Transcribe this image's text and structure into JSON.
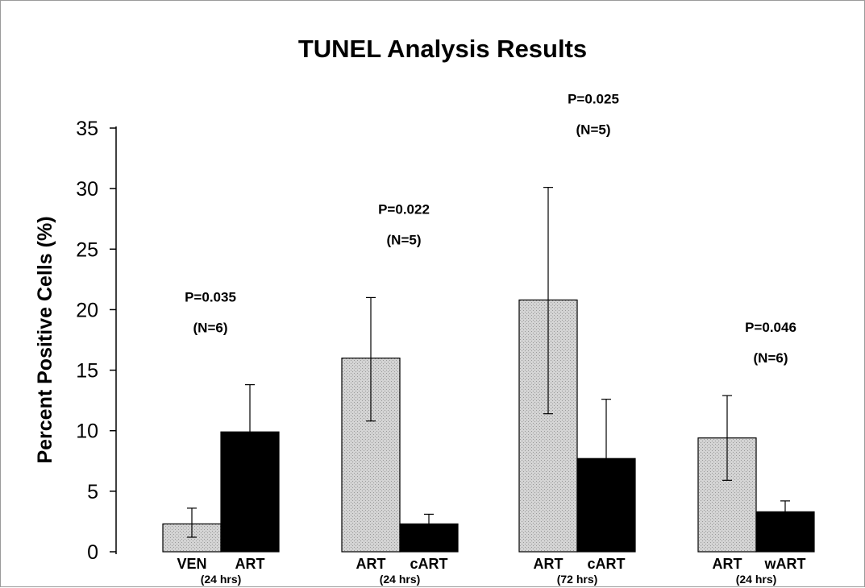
{
  "chart_data": {
    "type": "bar",
    "title": "TUNEL Analysis Results",
    "xlabel": "",
    "ylabel": "Percent Positive Cells (%)",
    "ylim": [
      0,
      35
    ],
    "yticks": [
      0,
      5,
      10,
      15,
      20,
      25,
      30,
      35
    ],
    "grid": false,
    "legend": "none",
    "colors": {
      "light": "#d4d4d4",
      "dark": "#000000"
    },
    "groups": [
      {
        "label": "(24 hrs)",
        "p_value": "P=0.035",
        "n": "(N=6)",
        "bars": [
          {
            "label": "VEN",
            "value": 2.3,
            "error_low": 1.2,
            "error_high": 3.6,
            "fill": "light"
          },
          {
            "label": "ART",
            "value": 9.9,
            "error_low": 9.9,
            "error_high": 13.8,
            "fill": "dark"
          }
        ]
      },
      {
        "label": "(24 hrs)",
        "p_value": "P=0.022",
        "n": "(N=5)",
        "bars": [
          {
            "label": "ART",
            "value": 16.0,
            "error_low": 10.8,
            "error_high": 21.0,
            "fill": "light"
          },
          {
            "label": "cART",
            "value": 2.3,
            "error_low": 2.3,
            "error_high": 3.1,
            "fill": "dark"
          }
        ]
      },
      {
        "label": "(72 hrs)",
        "p_value": "P=0.025",
        "n": "(N=5)",
        "bars": [
          {
            "label": "ART",
            "value": 20.8,
            "error_low": 11.4,
            "error_high": 30.1,
            "fill": "light"
          },
          {
            "label": "cART",
            "value": 7.7,
            "error_low": 7.7,
            "error_high": 12.6,
            "fill": "dark"
          }
        ]
      },
      {
        "label": "(24 hrs)",
        "p_value": "P=0.046",
        "n": "(N=6)",
        "bars": [
          {
            "label": "ART",
            "value": 9.4,
            "error_low": 5.9,
            "error_high": 12.9,
            "fill": "light"
          },
          {
            "label": "wART",
            "value": 3.3,
            "error_low": 3.3,
            "error_high": 4.2,
            "fill": "dark"
          }
        ]
      }
    ]
  }
}
